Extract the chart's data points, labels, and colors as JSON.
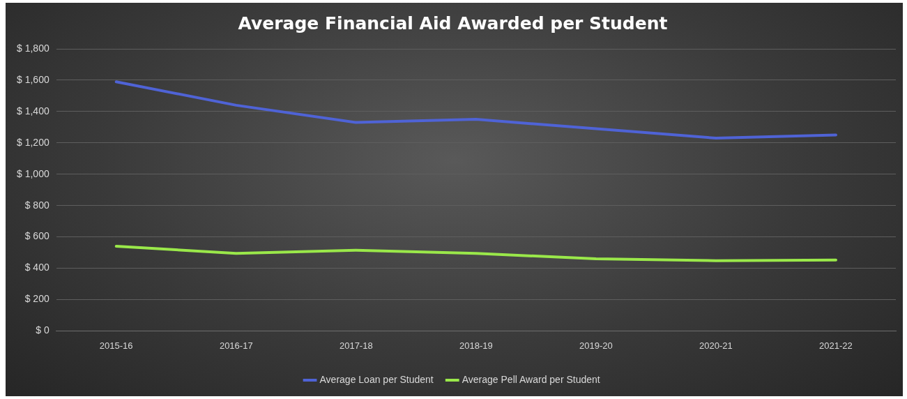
{
  "chart_data": {
    "type": "line",
    "title": "Average Financial Aid Awarded per Student",
    "categories": [
      "2015-16",
      "2016-17",
      "2017-18",
      "2018-19",
      "2019-20",
      "2020-21",
      "2021-22"
    ],
    "series": [
      {
        "name": "Average Loan per Student",
        "color": "#4f63d6",
        "values": [
          1590,
          1440,
          1330,
          1350,
          1290,
          1230,
          1250
        ]
      },
      {
        "name": "Average Pell Award per Student",
        "color": "#9ae84a",
        "values": [
          540,
          495,
          515,
          495,
          460,
          448,
          452
        ]
      }
    ],
    "ylim": [
      0,
      1800
    ],
    "yticks": [
      {
        "value": 0,
        "label": "$ 0"
      },
      {
        "value": 200,
        "label": "$ 200"
      },
      {
        "value": 400,
        "label": "$ 400"
      },
      {
        "value": 600,
        "label": "$ 600"
      },
      {
        "value": 800,
        "label": "$ 800"
      },
      {
        "value": 1000,
        "label": "$ 1,000"
      },
      {
        "value": 1200,
        "label": "$ 1,200"
      },
      {
        "value": 1400,
        "label": "$ 1,400"
      },
      {
        "value": 1600,
        "label": "$ 1,600"
      },
      {
        "value": 1800,
        "label": "$ 1,800"
      }
    ],
    "grid": "y",
    "legend": "bottom",
    "marker": "none",
    "line_style": "solid"
  }
}
